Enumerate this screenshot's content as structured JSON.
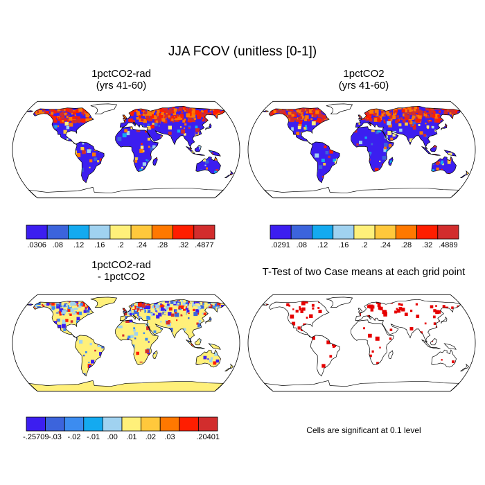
{
  "title": "JJA FCOV (unitless [0-1])",
  "panels": [
    {
      "id": "p1",
      "title_lines": [
        "1pctCO2-rad",
        "(yrs 41-60)"
      ]
    },
    {
      "id": "p2",
      "title_lines": [
        "1pctCO2",
        "(yrs 41-60)"
      ]
    },
    {
      "id": "p3",
      "title_lines": [
        "1pctCO2-rad",
        "- 1pctCO2"
      ]
    },
    {
      "id": "p4",
      "title_lines": [
        "T-Test of two Case means at each grid point"
      ]
    }
  ],
  "colorbars": [
    {
      "id": "cb1",
      "colors": [
        "#3c1ef0",
        "#3c64dc",
        "#14aaf0",
        "#a0d2f0",
        "#fff07a",
        "#ffc83c",
        "#ff7800",
        "#ff1e00",
        "#d22d2d"
      ],
      "labels": [
        ".0306",
        ".08",
        ".12",
        ".16",
        ".2",
        ".24",
        ".28",
        ".32",
        ".4877"
      ]
    },
    {
      "id": "cb2",
      "colors": [
        "#3c1ef0",
        "#3c64dc",
        "#14aaf0",
        "#a0d2f0",
        "#fff07a",
        "#ffc83c",
        "#ff7800",
        "#ff1e00",
        "#d22d2d"
      ],
      "labels": [
        ".0291",
        ".08",
        ".12",
        ".16",
        ".2",
        ".24",
        ".28",
        ".32",
        ".4889"
      ]
    },
    {
      "id": "cb3",
      "colors": [
        "#3c1ef0",
        "#3c64dc",
        "#3c8cf0",
        "#14aaf0",
        "#a0d2f0",
        "#fff07a",
        "#ffc83c",
        "#ff7800",
        "#ff1e00",
        "#d22d2d"
      ],
      "labels": [
        "-.25709",
        "-.03",
        "-.02",
        "-.01",
        ".00",
        ".01",
        ".02",
        ".03",
        "",
        ".20401"
      ]
    }
  ],
  "significance_color": "#e60000",
  "note": "Cells are significant at 0.1 level"
}
